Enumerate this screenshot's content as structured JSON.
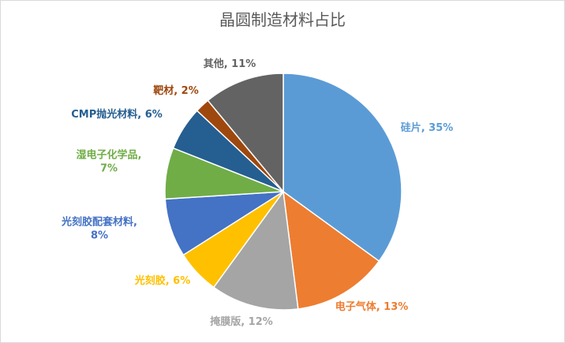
{
  "chart_data": {
    "type": "pie",
    "title": "晶圆制造材料占比",
    "categories": [
      "硅片",
      "电子气体",
      "掩膜版",
      "光刻胶",
      "光刻胶配套材料",
      "湿电子化学品",
      "CMP抛光材料",
      "靶材",
      "其他"
    ],
    "values": [
      35,
      13,
      12,
      6,
      8,
      7,
      6,
      2,
      11
    ],
    "unit": "%",
    "colors": [
      "#5b9bd5",
      "#ed7d31",
      "#a5a5a5",
      "#ffc000",
      "#4472c4",
      "#70ad47",
      "#255e91",
      "#9e480e",
      "#636363"
    ],
    "labels": [
      [
        "硅片, 35%"
      ],
      [
        "电子气体, 13%"
      ],
      [
        "掩膜版, 12%"
      ],
      [
        "光刻胶, 6%"
      ],
      [
        "光刻胶配套材料,",
        "8%"
      ],
      [
        "湿电子化学品,",
        "7%"
      ],
      [
        "CMP抛光材料, 6%"
      ],
      [
        "靶材, 2%"
      ],
      [
        "其他, 11%"
      ]
    ],
    "legend": "none"
  }
}
